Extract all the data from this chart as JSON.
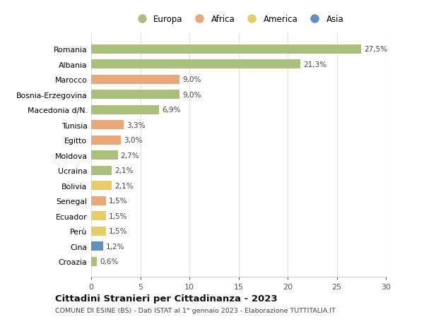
{
  "categories": [
    "Croazia",
    "Cina",
    "Perù",
    "Ecuador",
    "Senegal",
    "Bolivia",
    "Ucraina",
    "Moldova",
    "Egitto",
    "Tunisia",
    "Macedonia d/N.",
    "Bosnia-Erzegovina",
    "Marocco",
    "Albania",
    "Romania"
  ],
  "values": [
    0.6,
    1.2,
    1.5,
    1.5,
    1.5,
    2.1,
    2.1,
    2.7,
    3.0,
    3.3,
    6.9,
    9.0,
    9.0,
    21.3,
    27.5
  ],
  "labels": [
    "0,6%",
    "1,2%",
    "1,5%",
    "1,5%",
    "1,5%",
    "2,1%",
    "2,1%",
    "2,7%",
    "3,0%",
    "3,3%",
    "6,9%",
    "9,0%",
    "9,0%",
    "21,3%",
    "27,5%"
  ],
  "continent": [
    "Europa",
    "Asia",
    "America",
    "America",
    "Africa",
    "America",
    "Europa",
    "Europa",
    "Africa",
    "Africa",
    "Europa",
    "Europa",
    "Africa",
    "Europa",
    "Europa"
  ],
  "colors": {
    "Europa": "#a8c07a",
    "Africa": "#e8a878",
    "America": "#e8cc68",
    "Asia": "#6090c0"
  },
  "legend_order": [
    "Europa",
    "Africa",
    "America",
    "Asia"
  ],
  "title": "Cittadini Stranieri per Cittadinanza - 2023",
  "subtitle": "COMUNE DI ESINE (BS) - Dati ISTAT al 1° gennaio 2023 - Elaborazione TUTTITALIA.IT",
  "xlim": [
    0,
    30
  ],
  "xticks": [
    0,
    5,
    10,
    15,
    20,
    25,
    30
  ],
  "background_color": "#ffffff",
  "grid_color": "#e0e0e0"
}
